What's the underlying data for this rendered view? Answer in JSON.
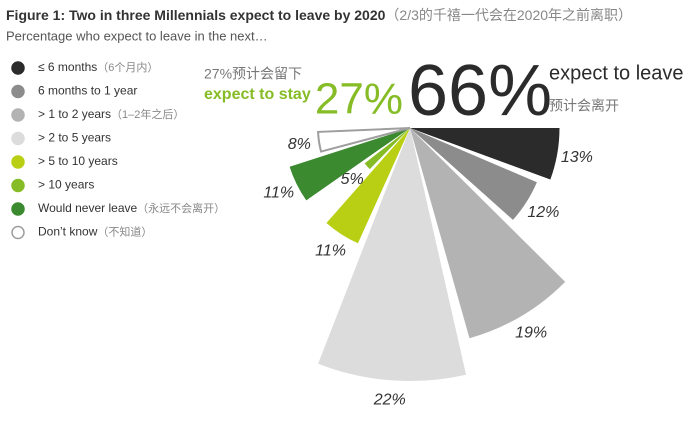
{
  "chart_data": {
    "type": "rose",
    "title": "Figure 1: Two in three Millennials expect to leave by 2020",
    "title_cn": "（2/3的千禧一代会在2020年之前离职）",
    "subtitle": "Percentage who expect to leave in the next…",
    "categories": [
      "≤ 6 months",
      "6 months to 1 year",
      "> 1 to 2 years",
      "> 2 to 5 years",
      "> 5 to 10 years",
      "> 10 years",
      "Would never leave",
      "Don’t know"
    ],
    "categories_cn": [
      "（6个月内）",
      null,
      "（1–2年之后）",
      null,
      null,
      null,
      "（永远不会离开）",
      "（不知道）"
    ],
    "values": [
      13,
      12,
      19,
      22,
      11,
      5,
      11,
      8
    ],
    "value_labels": [
      "13%",
      "12%",
      "19%",
      "22%",
      "11%",
      "5%",
      "11%",
      "8%"
    ],
    "colors": [
      "#2b2b2b",
      "#8c8c8c",
      "#b3b3b3",
      "#dcdcdc",
      "#b9cf14",
      "#86bc25",
      "#3b8a2f",
      "#ffffff"
    ],
    "annotations": {
      "leave_total": "66%",
      "leave_text": "expect to leave",
      "leave_text_cn": "预计会离开",
      "stay_total": "27%",
      "stay_text_cn": "27%预计会留下",
      "stay_text": "expect to stay"
    }
  }
}
